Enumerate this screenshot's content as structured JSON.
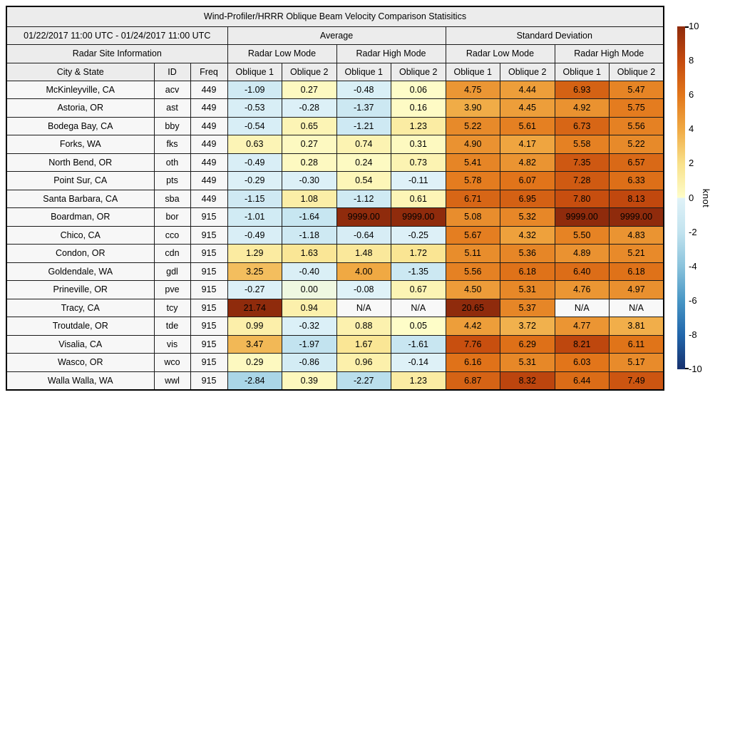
{
  "chart_data": {
    "type": "table",
    "title": "Wind-Profiler/HRRR Oblique Beam Velocity Comparison Statisitics",
    "period": "01/22/2017 11:00 UTC - 01/24/2017 11:00 UTC",
    "group_headers": {
      "average": "Average",
      "std_dev": "Standard Deviation"
    },
    "site_info_header": "Radar Site Information",
    "mode_headers": [
      "Radar Low Mode",
      "Radar High Mode",
      "Radar Low Mode",
      "Radar High Mode"
    ],
    "column_headers": {
      "city": "City & State",
      "id": "ID",
      "freq": "Freq",
      "oblique1": "Oblique 1",
      "oblique2": "Oblique 2"
    },
    "na_text": "N/A",
    "rows": [
      {
        "city": "McKinleyville, CA",
        "id": "acv",
        "freq": "449",
        "values": [
          "-1.09",
          "0.27",
          "-0.48",
          "0.06",
          "4.75",
          "4.44",
          "6.93",
          "5.47"
        ]
      },
      {
        "city": "Astoria, OR",
        "id": "ast",
        "freq": "449",
        "values": [
          "-0.53",
          "-0.28",
          "-1.37",
          "0.16",
          "3.90",
          "4.45",
          "4.92",
          "5.75"
        ]
      },
      {
        "city": "Bodega Bay, CA",
        "id": "bby",
        "freq": "449",
        "values": [
          "-0.54",
          "0.65",
          "-1.21",
          "1.23",
          "5.22",
          "5.61",
          "6.73",
          "5.56"
        ]
      },
      {
        "city": "Forks, WA",
        "id": "fks",
        "freq": "449",
        "values": [
          "0.63",
          "0.27",
          "0.74",
          "0.31",
          "4.90",
          "4.17",
          "5.58",
          "5.22"
        ]
      },
      {
        "city": "North Bend, OR",
        "id": "oth",
        "freq": "449",
        "values": [
          "-0.49",
          "0.28",
          "0.24",
          "0.73",
          "5.41",
          "4.82",
          "7.35",
          "6.57"
        ]
      },
      {
        "city": "Point Sur, CA",
        "id": "pts",
        "freq": "449",
        "values": [
          "-0.29",
          "-0.30",
          "0.54",
          "-0.11",
          "5.78",
          "6.07",
          "7.28",
          "6.33"
        ]
      },
      {
        "city": "Santa Barbara, CA",
        "id": "sba",
        "freq": "449",
        "values": [
          "-1.15",
          "1.08",
          "-1.12",
          "0.61",
          "6.71",
          "6.95",
          "7.80",
          "8.13"
        ]
      },
      {
        "city": "Boardman, OR",
        "id": "bor",
        "freq": "915",
        "values": [
          "-1.01",
          "-1.64",
          "9999.00",
          "9999.00",
          "5.08",
          "5.32",
          "9999.00",
          "9999.00"
        ]
      },
      {
        "city": "Chico, CA",
        "id": "cco",
        "freq": "915",
        "values": [
          "-0.49",
          "-1.18",
          "-0.64",
          "-0.25",
          "5.67",
          "4.32",
          "5.50",
          "4.83"
        ]
      },
      {
        "city": "Condon, OR",
        "id": "cdn",
        "freq": "915",
        "values": [
          "1.29",
          "1.63",
          "1.48",
          "1.72",
          "5.11",
          "5.36",
          "4.89",
          "5.21"
        ]
      },
      {
        "city": "Goldendale, WA",
        "id": "gdl",
        "freq": "915",
        "values": [
          "3.25",
          "-0.40",
          "4.00",
          "-1.35",
          "5.56",
          "6.18",
          "6.40",
          "6.18"
        ]
      },
      {
        "city": "Prineville, OR",
        "id": "pve",
        "freq": "915",
        "values": [
          "-0.27",
          "0.00",
          "-0.08",
          "0.67",
          "4.50",
          "5.31",
          "4.76",
          "4.97"
        ]
      },
      {
        "city": "Tracy, CA",
        "id": "tcy",
        "freq": "915",
        "values": [
          "21.74",
          "0.94",
          "N/A",
          "N/A",
          "20.65",
          "5.37",
          "N/A",
          "N/A"
        ]
      },
      {
        "city": "Troutdale, OR",
        "id": "tde",
        "freq": "915",
        "values": [
          "0.99",
          "-0.32",
          "0.88",
          "0.05",
          "4.42",
          "3.72",
          "4.77",
          "3.81"
        ]
      },
      {
        "city": "Visalia, CA",
        "id": "vis",
        "freq": "915",
        "values": [
          "3.47",
          "-1.97",
          "1.67",
          "-1.61",
          "7.76",
          "6.29",
          "8.21",
          "6.11"
        ]
      },
      {
        "city": "Wasco, OR",
        "id": "wco",
        "freq": "915",
        "values": [
          "0.29",
          "-0.86",
          "0.96",
          "-0.14",
          "6.16",
          "5.31",
          "6.03",
          "5.17"
        ]
      },
      {
        "city": "Walla Walla, WA",
        "id": "wwl",
        "freq": "915",
        "values": [
          "-2.84",
          "0.39",
          "-2.27",
          "1.23",
          "6.87",
          "8.32",
          "6.44",
          "7.49"
        ]
      }
    ],
    "colorbar": {
      "label": "knot",
      "min": -10,
      "max": 10,
      "ticks": [
        10,
        8,
        6,
        4,
        2,
        0,
        -2,
        -4,
        -6,
        -8,
        -10
      ],
      "gradient_stops": [
        {
          "v": 10,
          "c": "#8f2b0c"
        },
        {
          "v": 8,
          "c": "#c44a0e"
        },
        {
          "v": 6,
          "c": "#e2761a"
        },
        {
          "v": 4,
          "c": "#f0a943"
        },
        {
          "v": 2,
          "c": "#f9e18a"
        },
        {
          "v": 0.02,
          "c": "#fefdc9"
        },
        {
          "v": -0.02,
          "c": "#e0f2f8"
        },
        {
          "v": -2,
          "c": "#c2e3ef"
        },
        {
          "v": -4,
          "c": "#8ac3dc"
        },
        {
          "v": -6,
          "c": "#4896c5"
        },
        {
          "v": -8,
          "c": "#2166ab"
        },
        {
          "v": -10,
          "c": "#17316e"
        }
      ],
      "na_color": "#f8f8f8"
    }
  }
}
